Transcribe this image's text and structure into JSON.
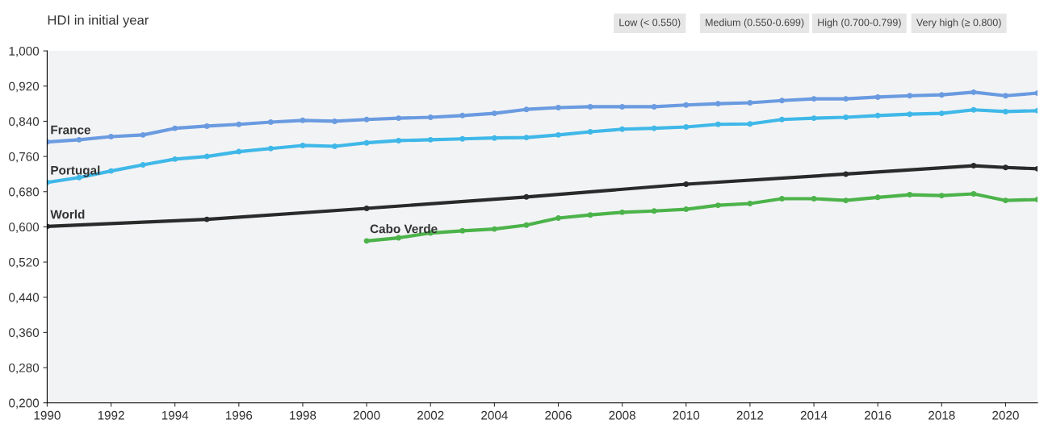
{
  "chart_data": {
    "type": "line",
    "title": "HDI in initial year",
    "annotations": [
      "Low (< 0.550)",
      "Medium (0.550-0.699)",
      "High (0.700-0.799)",
      "Very high (≥ 0.800)"
    ],
    "xlim": [
      1990,
      2021
    ],
    "xticks": [
      1990,
      1992,
      1994,
      1996,
      1998,
      2000,
      2002,
      2004,
      2006,
      2008,
      2010,
      2012,
      2014,
      2016,
      2018,
      2020
    ],
    "ylim": [
      0.2,
      1.0
    ],
    "yticks": [
      {
        "value": 0.2,
        "label": "0,200"
      },
      {
        "value": 0.28,
        "label": "0,280"
      },
      {
        "value": 0.36,
        "label": "0,360"
      },
      {
        "value": 0.44,
        "label": "0,440"
      },
      {
        "value": 0.52,
        "label": "0,520"
      },
      {
        "value": 0.6,
        "label": "0,600"
      },
      {
        "value": 0.68,
        "label": "0,680"
      },
      {
        "value": 0.76,
        "label": "0,760"
      },
      {
        "value": 0.84,
        "label": "0,840"
      },
      {
        "value": 0.92,
        "label": "0,920"
      },
      {
        "value": 1.0,
        "label": "1,000"
      }
    ],
    "marker": "circle",
    "grid": false,
    "legend": false,
    "series": [
      {
        "name": "France",
        "color": "#6a9be0",
        "x": [
          1990,
          1991,
          1992,
          1993,
          1994,
          1995,
          1996,
          1997,
          1998,
          1999,
          2000,
          2001,
          2002,
          2003,
          2004,
          2005,
          2006,
          2007,
          2008,
          2009,
          2010,
          2011,
          2012,
          2013,
          2014,
          2015,
          2016,
          2017,
          2018,
          2019,
          2020,
          2021
        ],
        "values": [
          0.793,
          0.798,
          0.805,
          0.809,
          0.824,
          0.829,
          0.833,
          0.838,
          0.842,
          0.84,
          0.844,
          0.847,
          0.849,
          0.853,
          0.858,
          0.867,
          0.871,
          0.873,
          0.873,
          0.873,
          0.877,
          0.88,
          0.882,
          0.887,
          0.891,
          0.891,
          0.895,
          0.898,
          0.9,
          0.906,
          0.898,
          0.904
        ]
      },
      {
        "name": "Portugal",
        "color": "#3fb8e8",
        "x": [
          1990,
          1991,
          1992,
          1993,
          1994,
          1995,
          1996,
          1997,
          1998,
          1999,
          2000,
          2001,
          2002,
          2003,
          2004,
          2005,
          2006,
          2007,
          2008,
          2009,
          2010,
          2011,
          2012,
          2013,
          2014,
          2015,
          2016,
          2017,
          2018,
          2019,
          2020,
          2021
        ],
        "values": [
          0.701,
          0.712,
          0.727,
          0.741,
          0.754,
          0.76,
          0.771,
          0.778,
          0.785,
          0.783,
          0.791,
          0.796,
          0.798,
          0.8,
          0.802,
          0.803,
          0.809,
          0.816,
          0.822,
          0.824,
          0.827,
          0.833,
          0.834,
          0.844,
          0.847,
          0.849,
          0.853,
          0.856,
          0.858,
          0.866,
          0.862,
          0.864
        ]
      },
      {
        "name": "World",
        "color": "#2a2a2a",
        "x": [
          1990,
          1995,
          2000,
          2005,
          2010,
          2015,
          2019,
          2020,
          2021
        ],
        "values": [
          0.601,
          0.617,
          0.642,
          0.668,
          0.697,
          0.72,
          0.739,
          0.735,
          0.732
        ]
      },
      {
        "name": "Cabo Verde",
        "color": "#4cb34a",
        "x": [
          2000,
          2001,
          2002,
          2003,
          2004,
          2005,
          2006,
          2007,
          2008,
          2009,
          2010,
          2011,
          2012,
          2013,
          2014,
          2015,
          2016,
          2017,
          2018,
          2019,
          2020,
          2021
        ],
        "values": [
          0.568,
          0.575,
          0.586,
          0.591,
          0.595,
          0.604,
          0.62,
          0.627,
          0.633,
          0.636,
          0.64,
          0.649,
          0.653,
          0.664,
          0.664,
          0.66,
          0.667,
          0.673,
          0.671,
          0.675,
          0.66,
          0.662
        ]
      }
    ]
  }
}
